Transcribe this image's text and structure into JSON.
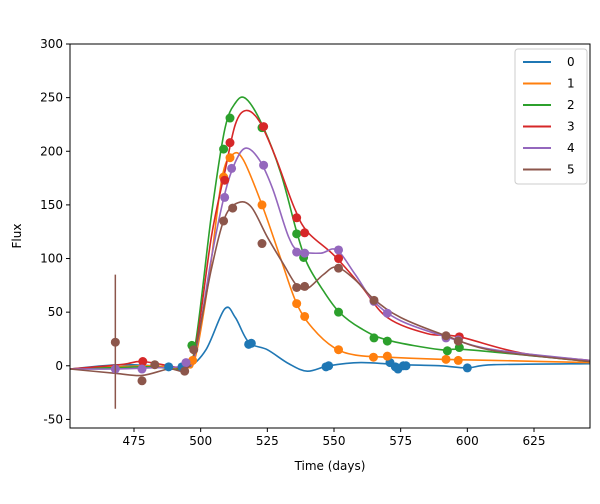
{
  "chart_data": {
    "type": "line",
    "title": "",
    "xlabel": "Time (days)",
    "ylabel": "Flux",
    "xlim": [
      451,
      646
    ],
    "ylim": [
      -58,
      300
    ],
    "xticks": [
      475,
      500,
      525,
      550,
      575,
      600,
      625
    ],
    "yticks": [
      -50,
      0,
      50,
      100,
      150,
      200,
      250,
      300
    ],
    "grid": false,
    "legend_placement": "top-right",
    "series": [
      {
        "name": "0",
        "color": "#1f77b4",
        "points": [
          [
            488,
            -1
          ],
          [
            493,
            -1
          ],
          [
            518,
            20
          ],
          [
            519,
            21
          ],
          [
            547,
            -1
          ],
          [
            548,
            0
          ],
          [
            571,
            3
          ],
          [
            573,
            -1
          ],
          [
            574,
            -3
          ],
          [
            576,
            0
          ],
          [
            577,
            0
          ],
          [
            600,
            -2
          ]
        ],
        "curve": [
          [
            451,
            -3
          ],
          [
            470,
            1
          ],
          [
            488,
            -1
          ],
          [
            495,
            -2
          ],
          [
            502,
            15
          ],
          [
            509,
            53
          ],
          [
            513,
            45
          ],
          [
            518,
            22
          ],
          [
            525,
            15
          ],
          [
            533,
            2
          ],
          [
            540,
            -5
          ],
          [
            548,
            0
          ],
          [
            560,
            3
          ],
          [
            575,
            1
          ],
          [
            590,
            0
          ],
          [
            600,
            -2
          ],
          [
            610,
            1
          ],
          [
            646,
            2
          ]
        ]
      },
      {
        "name": "1",
        "color": "#ff7f0e",
        "points": [
          [
            497,
            5
          ],
          [
            508.6,
            176
          ],
          [
            511,
            194
          ],
          [
            523,
            150
          ],
          [
            536,
            58
          ],
          [
            539,
            46
          ],
          [
            551.7,
            15
          ],
          [
            564.8,
            8
          ],
          [
            570,
            9
          ],
          [
            592,
            6
          ],
          [
            596.6,
            5
          ]
        ],
        "curve": [
          [
            451,
            -3
          ],
          [
            480,
            0
          ],
          [
            494,
            -2
          ],
          [
            498,
            8
          ],
          [
            503,
            80
          ],
          [
            508,
            175
          ],
          [
            512,
            197
          ],
          [
            516,
            192
          ],
          [
            523,
            150
          ],
          [
            530,
            100
          ],
          [
            536,
            58
          ],
          [
            542,
            35
          ],
          [
            550,
            17
          ],
          [
            558,
            10
          ],
          [
            570,
            8
          ],
          [
            590,
            6
          ],
          [
            610,
            5
          ],
          [
            646,
            3
          ]
        ]
      },
      {
        "name": "2",
        "color": "#2ca02c",
        "points": [
          [
            496.7,
            19
          ],
          [
            508.6,
            202
          ],
          [
            511,
            231
          ],
          [
            523,
            222
          ],
          [
            536,
            123
          ],
          [
            538.6,
            101
          ],
          [
            551.7,
            50
          ],
          [
            565,
            26
          ],
          [
            570,
            23
          ],
          [
            592.5,
            14
          ],
          [
            597,
            17
          ]
        ],
        "curve": [
          [
            451,
            -3
          ],
          [
            480,
            -1
          ],
          [
            494,
            -2
          ],
          [
            498,
            20
          ],
          [
            504,
            140
          ],
          [
            509,
            220
          ],
          [
            513,
            245
          ],
          [
            517,
            249
          ],
          [
            523,
            225
          ],
          [
            530,
            180
          ],
          [
            536,
            125
          ],
          [
            540,
            95
          ],
          [
            546,
            70
          ],
          [
            552,
            50
          ],
          [
            560,
            35
          ],
          [
            570,
            24
          ],
          [
            590,
            15
          ],
          [
            600,
            15
          ],
          [
            646,
            4
          ]
        ]
      },
      {
        "name": "3",
        "color": "#d62728",
        "points": [
          [
            478.3,
            4
          ],
          [
            509,
            173
          ],
          [
            511,
            208
          ],
          [
            523.6,
            223
          ],
          [
            536,
            138
          ],
          [
            539,
            124
          ],
          [
            551.7,
            100
          ],
          [
            597,
            27
          ]
        ],
        "curve": [
          [
            451,
            -3
          ],
          [
            470,
            1
          ],
          [
            478,
            4
          ],
          [
            490,
            -1
          ],
          [
            494,
            -2
          ],
          [
            498,
            15
          ],
          [
            504,
            120
          ],
          [
            509,
            180
          ],
          [
            513,
            225
          ],
          [
            517,
            238
          ],
          [
            522,
            228
          ],
          [
            528,
            195
          ],
          [
            535,
            148
          ],
          [
            540,
            125
          ],
          [
            550,
            103
          ],
          [
            560,
            75
          ],
          [
            570,
            45
          ],
          [
            585,
            30
          ],
          [
            597,
            27
          ],
          [
            620,
            12
          ],
          [
            646,
            5
          ]
        ]
      },
      {
        "name": "4",
        "color": "#9467bd",
        "points": [
          [
            468,
            -3
          ],
          [
            478,
            -3
          ],
          [
            494.5,
            3
          ],
          [
            509,
            157
          ],
          [
            511.6,
            184
          ],
          [
            523.6,
            187
          ],
          [
            536,
            106
          ],
          [
            539,
            105
          ],
          [
            551.7,
            108
          ],
          [
            565,
            60
          ],
          [
            570,
            49
          ],
          [
            592,
            26
          ],
          [
            596.6,
            24
          ]
        ],
        "curve": [
          [
            451,
            -3
          ],
          [
            468,
            -3
          ],
          [
            480,
            -2
          ],
          [
            494,
            0
          ],
          [
            498,
            12
          ],
          [
            504,
            100
          ],
          [
            509,
            160
          ],
          [
            513,
            190
          ],
          [
            517,
            203
          ],
          [
            522,
            192
          ],
          [
            527,
            165
          ],
          [
            533,
            120
          ],
          [
            537,
            107
          ],
          [
            545,
            105
          ],
          [
            551,
            108
          ],
          [
            558,
            85
          ],
          [
            565,
            60
          ],
          [
            575,
            42
          ],
          [
            592,
            27
          ],
          [
            610,
            15
          ],
          [
            646,
            5
          ]
        ]
      },
      {
        "name": "5",
        "color": "#8c564b",
        "points": [
          [
            468,
            22
          ],
          [
            478,
            -14
          ],
          [
            482.8,
            1
          ],
          [
            494,
            -5
          ],
          [
            497.4,
            15
          ],
          [
            508.6,
            135
          ],
          [
            512,
            147
          ],
          [
            523,
            114
          ],
          [
            536,
            73
          ],
          [
            539,
            74
          ],
          [
            551.7,
            91
          ],
          [
            565,
            61
          ],
          [
            592,
            28
          ],
          [
            596.6,
            23
          ]
        ],
        "errorbars": [
          [
            468,
            -40,
            85
          ]
        ],
        "curve": [
          [
            451,
            -3
          ],
          [
            468,
            -7
          ],
          [
            478,
            -9
          ],
          [
            488,
            -3
          ],
          [
            494,
            -4
          ],
          [
            498,
            15
          ],
          [
            504,
            90
          ],
          [
            509,
            138
          ],
          [
            514,
            152
          ],
          [
            519,
            148
          ],
          [
            525,
            120
          ],
          [
            531,
            95
          ],
          [
            536,
            75
          ],
          [
            540,
            72
          ],
          [
            546,
            85
          ],
          [
            551,
            92
          ],
          [
            558,
            80
          ],
          [
            565,
            62
          ],
          [
            575,
            45
          ],
          [
            592,
            28
          ],
          [
            610,
            14
          ],
          [
            646,
            4
          ]
        ]
      }
    ]
  }
}
